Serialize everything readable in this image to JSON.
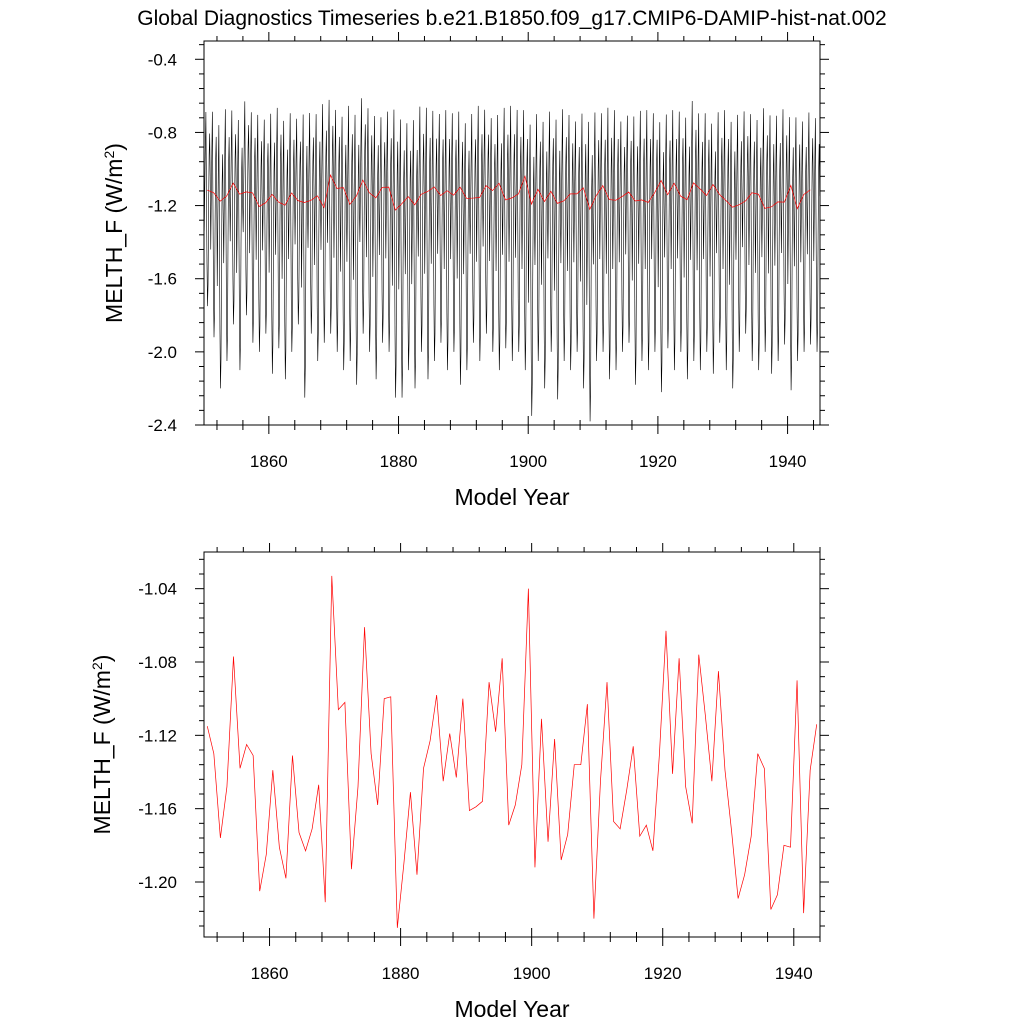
{
  "figure": {
    "title": "Global Diagnostics Timeseries b.e21.B1850.f09_g17.CMIP6-DAMIP-hist-nat.002"
  },
  "chart_data": [
    {
      "type": "line",
      "title": "Global Diagnostics Timeseries b.e21.B1850.f09_g17.CMIP6-DAMIP-hist-nat.002",
      "xlabel": "Model Year",
      "ylabel_main": "MELTH_F (W/m",
      "ylabel_sup": "2",
      "ylabel_close": ")",
      "xlim": [
        1850,
        1945
      ],
      "ylim": [
        -2.4,
        -0.3
      ],
      "xticks": [
        1860,
        1880,
        1900,
        1920,
        1940
      ],
      "xtick_labels": [
        "1860",
        "1880",
        "1900",
        "1920",
        "1940"
      ],
      "yticks": [
        -0.4,
        -0.8,
        -1.2,
        -1.6,
        -2.0,
        -2.4
      ],
      "ytick_labels": [
        "-0.4",
        "-0.8",
        "-1.2",
        "-1.6",
        "-2.0",
        "-2.4"
      ],
      "grid": false,
      "legend": "none",
      "series": [
        {
          "style": "monthly",
          "color": "#000000",
          "monthly_shape": [
            0.35,
            0.55,
            0.75,
            0.9,
            0.55,
            0.2,
            0.0,
            0.1,
            0.45,
            0.7,
            0.8,
            0.6
          ],
          "annual_max": [
            -0.57,
            -0.55,
            -0.6,
            -0.52,
            -0.55,
            -0.58,
            -0.5,
            -0.55,
            -0.56,
            -0.6,
            -0.54,
            -0.52,
            -0.58,
            -0.55,
            -0.6,
            -0.53,
            -0.56,
            -0.55,
            -0.5,
            -0.48,
            -0.53,
            -0.56,
            -0.5,
            -0.54,
            -0.47,
            -0.52,
            -0.55,
            -0.58,
            -0.54,
            -0.5,
            -0.56,
            -0.6,
            -0.57,
            -0.51,
            -0.5,
            -0.53,
            -0.56,
            -0.52,
            -0.55,
            -0.52,
            -0.6,
            -0.56,
            -0.5,
            -0.54,
            -0.58,
            -0.55,
            -0.52,
            -0.5,
            -0.53,
            -0.52,
            -0.58,
            -0.55,
            -0.58,
            -0.54,
            -0.56,
            -0.52,
            -0.55,
            -0.6,
            -0.53,
            -0.56,
            -0.54,
            -0.55,
            -0.5,
            -0.52,
            -0.6,
            -0.57,
            -0.55,
            -0.53,
            -0.52,
            -0.55,
            -0.58,
            -0.56,
            -0.52,
            -0.54,
            -0.56,
            -0.47,
            -0.54,
            -0.55,
            -0.6,
            -0.55,
            -0.52,
            -0.58,
            -0.56,
            -0.55,
            -0.55,
            -0.58,
            -0.52,
            -0.55,
            -0.56,
            -0.53,
            -0.55,
            -0.57,
            -0.6,
            -0.55,
            -0.58
          ],
          "annual_min": [
            -1.75,
            -1.92,
            -2.2,
            -2.05,
            -1.85,
            -2.1,
            -1.8,
            -1.95,
            -2.0,
            -1.9,
            -2.12,
            -1.98,
            -2.15,
            -2.0,
            -1.85,
            -2.25,
            -1.9,
            -2.05,
            -1.95,
            -1.9,
            -2.0,
            -2.1,
            -2.05,
            -2.18,
            -1.9,
            -2.0,
            -2.15,
            -1.95,
            -2.0,
            -2.25,
            -2.25,
            -2.1,
            -2.2,
            -2.0,
            -2.15,
            -2.05,
            -1.95,
            -2.1,
            -2.0,
            -2.18,
            -2.1,
            -1.95,
            -2.05,
            -1.9,
            -2.0,
            -2.1,
            -1.98,
            -2.05,
            -2.0,
            -2.1,
            -2.35,
            -2.05,
            -2.2,
            -2.0,
            -2.26,
            -2.05,
            -2.1,
            -2.0,
            -2.2,
            -2.38,
            -2.05,
            -2.0,
            -2.15,
            -2.1,
            -2.0,
            -1.95,
            -2.18,
            -2.05,
            -2.1,
            -2.0,
            -2.22,
            -1.98,
            -2.1,
            -2.0,
            -2.15,
            -2.05,
            -2.1,
            -2.0,
            -2.12,
            -1.95,
            -2.1,
            -2.2,
            -2.0,
            -1.9,
            -2.05,
            -2.1,
            -2.0,
            -2.12,
            -2.05,
            -1.96,
            -2.21,
            -2.05,
            -2.0,
            -1.96,
            -2.0
          ]
        },
        {
          "style": "annual",
          "color": "#ff0000",
          "x": [
            1850.5,
            1851.5,
            1852.5,
            1853.5,
            1854.5,
            1855.5,
            1856.5,
            1857.5,
            1858.5,
            1859.5,
            1860.5,
            1861.5,
            1862.5,
            1863.5,
            1864.5,
            1865.5,
            1866.5,
            1867.5,
            1868.5,
            1869.5,
            1870.5,
            1871.5,
            1872.5,
            1873.5,
            1874.5,
            1875.5,
            1876.5,
            1877.5,
            1878.5,
            1879.5,
            1880.5,
            1881.5,
            1882.5,
            1883.5,
            1884.5,
            1885.5,
            1886.5,
            1887.5,
            1888.5,
            1889.5,
            1890.5,
            1891.5,
            1892.5,
            1893.5,
            1894.5,
            1895.5,
            1896.5,
            1897.5,
            1898.5,
            1899.5,
            1900.5,
            1901.5,
            1902.5,
            1903.5,
            1904.5,
            1905.5,
            1906.5,
            1907.5,
            1908.5,
            1909.5,
            1910.5,
            1911.5,
            1912.5,
            1913.5,
            1914.5,
            1915.5,
            1916.5,
            1917.5,
            1918.5,
            1919.5,
            1920.5,
            1921.5,
            1922.5,
            1923.5,
            1924.5,
            1925.5,
            1926.5,
            1927.5,
            1928.5,
            1929.5,
            1930.5,
            1931.5,
            1932.5,
            1933.5,
            1934.5,
            1935.5,
            1936.5,
            1937.5,
            1938.5,
            1939.5,
            1940.5,
            1941.5,
            1942.5,
            1943.5
          ],
          "values": [
            -1.115,
            -1.13,
            -1.176,
            -1.148,
            -1.077,
            -1.138,
            -1.125,
            -1.131,
            -1.205,
            -1.185,
            -1.139,
            -1.181,
            -1.198,
            -1.131,
            -1.173,
            -1.183,
            -1.171,
            -1.147,
            -1.211,
            -1.033,
            -1.106,
            -1.102,
            -1.193,
            -1.148,
            -1.061,
            -1.13,
            -1.158,
            -1.1,
            -1.099,
            -1.225,
            -1.19,
            -1.151,
            -1.196,
            -1.138,
            -1.123,
            -1.098,
            -1.145,
            -1.119,
            -1.143,
            -1.1,
            -1.161,
            -1.159,
            -1.156,
            -1.091,
            -1.118,
            -1.078,
            -1.169,
            -1.158,
            -1.136,
            -1.04,
            -1.192,
            -1.111,
            -1.178,
            -1.122,
            -1.188,
            -1.174,
            -1.136,
            -1.136,
            -1.103,
            -1.22,
            -1.145,
            -1.091,
            -1.167,
            -1.171,
            -1.15,
            -1.126,
            -1.175,
            -1.169,
            -1.183,
            -1.13,
            -1.063,
            -1.141,
            -1.078,
            -1.148,
            -1.168,
            -1.076,
            -1.109,
            -1.145,
            -1.085,
            -1.139,
            -1.172,
            -1.209,
            -1.196,
            -1.175,
            -1.13,
            -1.138,
            -1.215,
            -1.207,
            -1.18,
            -1.181,
            -1.09,
            -1.217,
            -1.139,
            -1.114
          ]
        }
      ]
    },
    {
      "type": "line",
      "xlabel": "Model Year",
      "ylabel_main": "MELTH_F (W/m",
      "ylabel_sup": "2",
      "ylabel_close": ")",
      "xlim": [
        1850,
        1944
      ],
      "ylim": [
        -1.23,
        -1.02
      ],
      "xticks": [
        1860,
        1880,
        1900,
        1920,
        1940
      ],
      "xtick_labels": [
        "1860",
        "1880",
        "1900",
        "1920",
        "1940"
      ],
      "yticks": [
        -1.04,
        -1.08,
        -1.12,
        -1.16,
        -1.2
      ],
      "ytick_labels": [
        "-1.04",
        "-1.08",
        "-1.12",
        "-1.16",
        "-1.20"
      ],
      "grid": false,
      "legend": "none",
      "series": [
        {
          "style": "annual",
          "color": "#ff0000",
          "ref": 0
        }
      ]
    }
  ]
}
